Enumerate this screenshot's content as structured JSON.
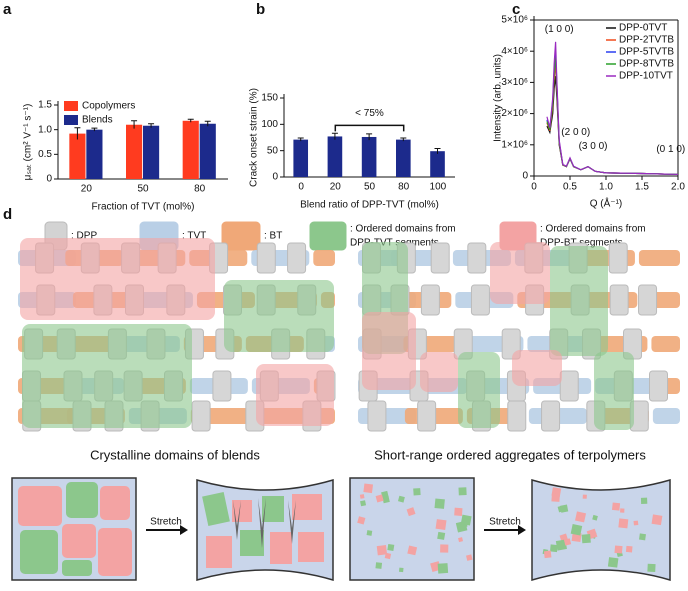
{
  "panel_labels": [
    "a",
    "b",
    "c",
    "d"
  ],
  "chart_data": [
    {
      "type": "bar",
      "categories": [
        "20",
        "50",
        "80"
      ],
      "xlabel": "Fraction of TVT (mol%)",
      "ylabel": "μₛₐₜ (cm² V⁻¹ s⁻¹)",
      "series": [
        {
          "name": "Copolymers",
          "color": "#ff3b1f",
          "values": [
            0.92,
            1.1,
            1.18
          ],
          "errors": [
            0.12,
            0.08,
            0.03
          ]
        },
        {
          "name": "Blends",
          "color": "#1c2a8c",
          "values": [
            1.0,
            1.08,
            1.12
          ],
          "errors": [
            0.03,
            0.04,
            0.05
          ]
        }
      ],
      "ylim": [
        0,
        1.5
      ],
      "yticks": [
        0,
        0.5,
        {
          "value": 1,
          "label": "1.0"
        },
        1.5
      ],
      "legend": "top-left"
    },
    {
      "type": "bar",
      "categories": [
        "0",
        "20",
        "50",
        "80",
        "100"
      ],
      "xlabel": "Blend ratio of DPP-TVT (mol%)",
      "ylabel": "Crack onset strain (%)",
      "series": [
        {
          "name": null,
          "color": "#1c2a8c",
          "values": [
            71,
            77,
            76,
            71,
            49
          ],
          "errors": [
            3,
            6,
            6,
            3,
            5
          ]
        }
      ],
      "ylim": [
        0,
        150
      ],
      "yticks": [
        0,
        50,
        100,
        150
      ],
      "annotations": [
        "< 75%"
      ]
    },
    {
      "type": "line",
      "xlabel": "Q (Å⁻¹)",
      "ylabel": "Intensity (arb. units)",
      "x": [
        0.18,
        0.22,
        0.26,
        0.28,
        0.3,
        0.32,
        0.35,
        0.4,
        0.45,
        0.5,
        0.55,
        0.65,
        0.75,
        0.85,
        1.0,
        1.5,
        2.0
      ],
      "series": [
        {
          "name": "DPP-0TVT",
          "color": "#111111",
          "values": [
            1600000,
            1400000,
            2000000,
            2800000,
            3200000,
            2400000,
            1000000,
            350000,
            300000,
            550000,
            300000,
            200000,
            300000,
            150000,
            100000,
            80000,
            50000
          ]
        },
        {
          "name": "DPP-2TVTB",
          "color": "#f04a1a",
          "values": [
            1700000,
            1450000,
            2200000,
            3100000,
            3600000,
            2600000,
            1050000,
            350000,
            300000,
            560000,
            300000,
            200000,
            300000,
            150000,
            100000,
            80000,
            50000
          ]
        },
        {
          "name": "DPP-5TVTB",
          "color": "#2a3ff0",
          "values": [
            1800000,
            1500000,
            2400000,
            3400000,
            4000000,
            2800000,
            1100000,
            360000,
            310000,
            570000,
            310000,
            200000,
            300000,
            150000,
            100000,
            80000,
            50000
          ]
        },
        {
          "name": "DPP-8TVTB",
          "color": "#2aa02a",
          "values": [
            1750000,
            1480000,
            2300000,
            3300000,
            3800000,
            2700000,
            1080000,
            360000,
            300000,
            560000,
            300000,
            200000,
            300000,
            150000,
            100000,
            80000,
            50000
          ]
        },
        {
          "name": "DPP-10TVT",
          "color": "#9a2ac0",
          "values": [
            1900000,
            1550000,
            2500000,
            3600000,
            4300000,
            2900000,
            1150000,
            370000,
            310000,
            580000,
            310000,
            200000,
            300000,
            150000,
            100000,
            80000,
            50000
          ]
        }
      ],
      "xlim": [
        0,
        2.0
      ],
      "xticks": [
        0,
        0.5,
        {
          "value": 1,
          "label": "1.0"
        },
        1.5,
        {
          "value": 2,
          "label": "2.0"
        }
      ],
      "ylim": [
        0,
        5000000
      ],
      "yticks": [
        0,
        {
          "value": 1000000,
          "label": "1×10⁶"
        },
        {
          "value": 2000000,
          "label": "2×10⁶"
        },
        {
          "value": 3000000,
          "label": "3×10⁶"
        },
        {
          "value": 4000000,
          "label": "4×10⁶"
        },
        {
          "value": 5000000,
          "label": "5×10⁶"
        }
      ],
      "annotations": [
        "(1 0 0)",
        "(2 0 0)",
        "(3 0 0)",
        "(0 1 0)"
      ],
      "legend": "top-right"
    }
  ],
  "diagram": {
    "legend": [
      {
        "lines": [
          ": DPP"
        ]
      },
      {
        "lines": [
          ": TVT"
        ]
      },
      {
        "lines": [
          ": BT"
        ]
      },
      {
        "lines": [
          ": Ordered domains from",
          "DPP-TVT segments"
        ]
      },
      {
        "lines": [
          ": Ordered domains from",
          "DPP-BT segments"
        ]
      }
    ],
    "captions": [
      "Crystalline domains of blends",
      "Short-range ordered aggregates of terpolymers"
    ],
    "stretch_labels": [
      "Stretch",
      "Stretch"
    ]
  }
}
